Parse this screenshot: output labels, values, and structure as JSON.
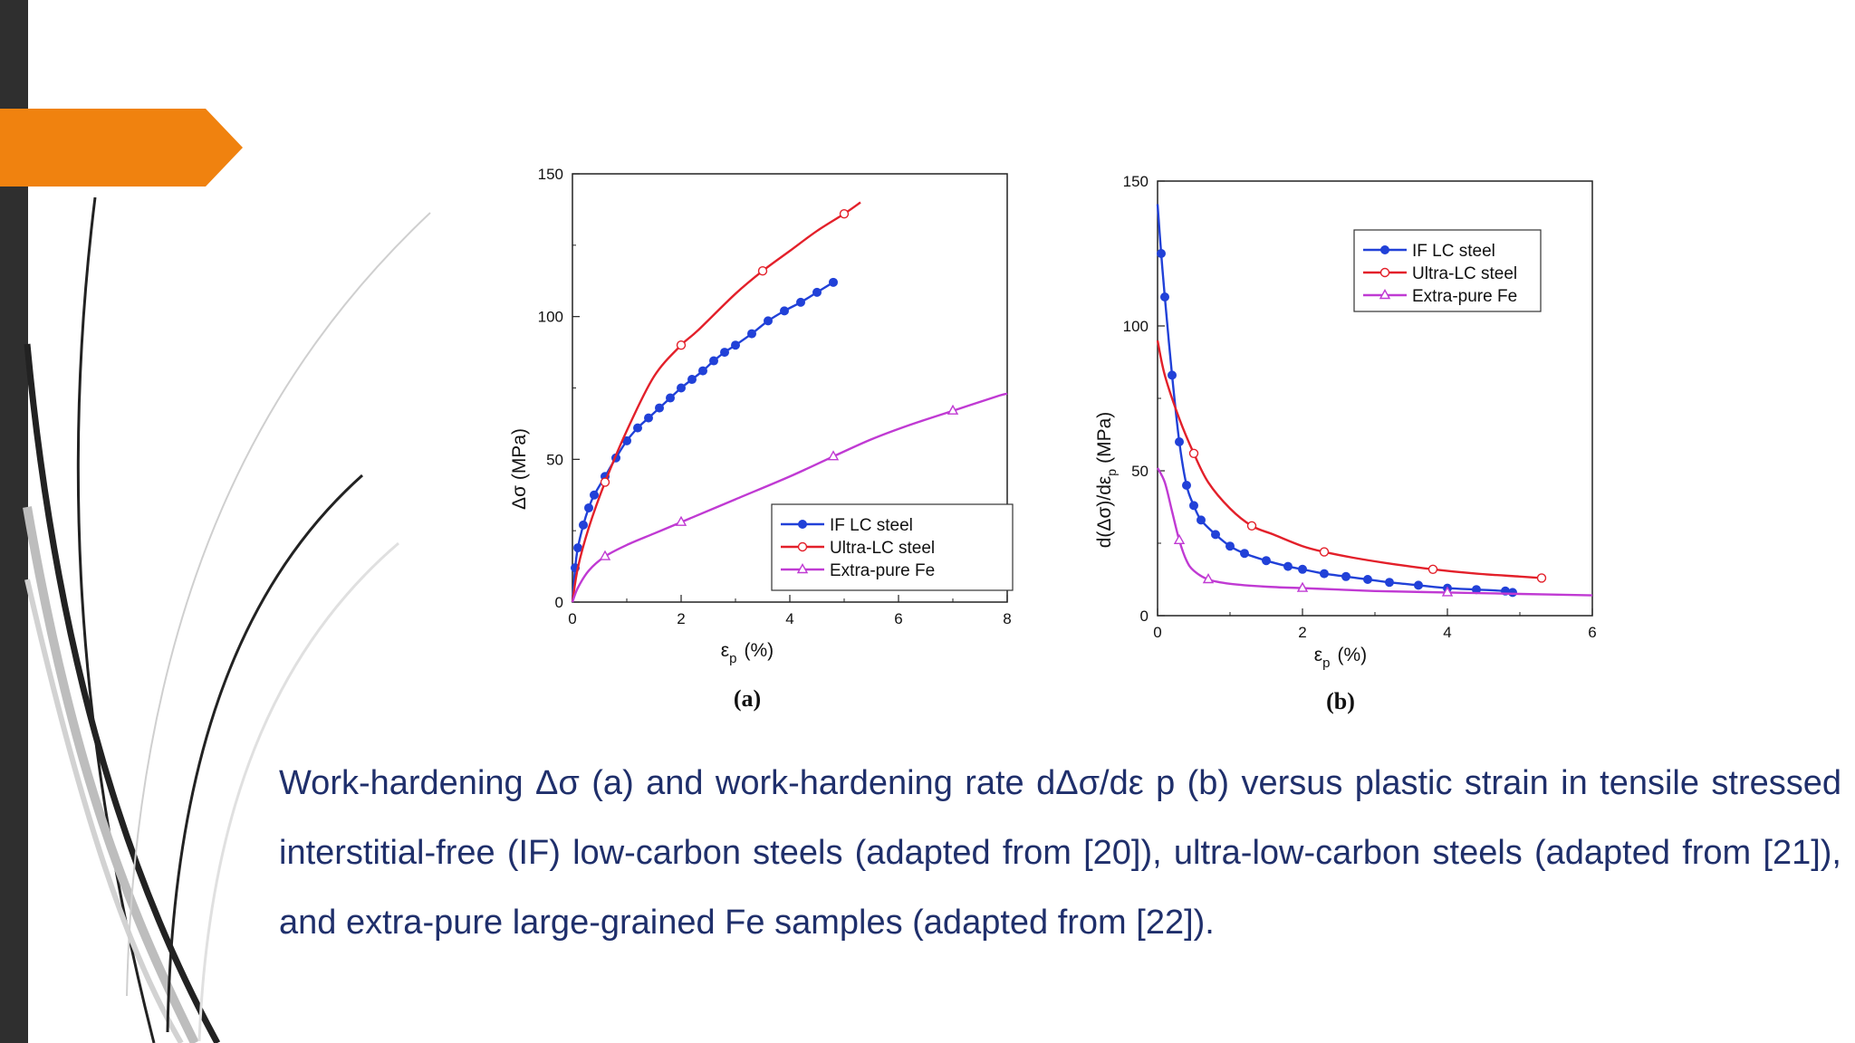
{
  "slide": {
    "accent_color": "#f0820f",
    "bar_color": "#2f2f2f",
    "caption_color": "#1f2f6b",
    "caption": "Work-hardening Δσ (a) and work-hardening rate dΔσ/dε p (b) versus plastic strain in tensile stressed interstitial-free (IF) low-carbon steels (adapted from [20]), ultra-low-carbon steels (adapted from [21]), and extra-pure large-grained Fe samples (adapted from [22])."
  },
  "chart_data": [
    {
      "type": "line",
      "panel_label": "(a)",
      "xlabel": "ε",
      "xlabel_sub": "p",
      "xlabel_unit": "(%)",
      "ylabel": "Δσ (MPa)",
      "xlim": [
        0,
        8
      ],
      "ylim": [
        0,
        150
      ],
      "xticks": [
        0,
        2,
        4,
        6,
        8
      ],
      "yticks": [
        0,
        50,
        100,
        150
      ],
      "grid": false,
      "legend_position": "lower-right",
      "series": [
        {
          "name": "IF LC steel",
          "color": "#2141d8",
          "marker": "filled-circle",
          "x": [
            0,
            0.05,
            0.1,
            0.2,
            0.3,
            0.4,
            0.6,
            0.8,
            1.0,
            1.2,
            1.4,
            1.6,
            1.8,
            2.0,
            2.2,
            2.4,
            2.6,
            2.8,
            3.0,
            3.3,
            3.6,
            3.9,
            4.2,
            4.5,
            4.8
          ],
          "y": [
            0,
            12,
            19,
            27,
            33,
            37.5,
            44,
            50.5,
            56.5,
            61,
            64.5,
            68,
            71.5,
            75,
            78,
            81,
            84.5,
            87.5,
            90,
            94,
            98.5,
            102,
            105,
            108.5,
            112
          ]
        },
        {
          "name": "Ultra-LC steel",
          "color": "#e3202a",
          "marker": "open-circle",
          "x": [
            0,
            0.1,
            0.3,
            0.6,
            1.0,
            1.5,
            2.0,
            2.3,
            3.0,
            3.5,
            4.0,
            4.5,
            5.0,
            5.3
          ],
          "y": [
            0,
            12,
            26,
            42,
            60,
            79,
            90,
            95,
            108,
            116,
            123,
            130,
            136,
            140
          ]
        },
        {
          "name": "Extra-pure Fe",
          "color": "#c03ad3",
          "marker": "open-triangle",
          "x": [
            0,
            0.1,
            0.3,
            0.6,
            1.0,
            1.5,
            2.0,
            3.0,
            4.0,
            4.8,
            5.5,
            6.2,
            7.0,
            7.8,
            8.0
          ],
          "y": [
            0,
            5,
            11,
            16,
            20,
            24,
            28,
            36,
            44,
            51,
            57,
            62,
            67,
            72,
            73
          ]
        }
      ]
    },
    {
      "type": "line",
      "panel_label": "(b)",
      "xlabel": "ε",
      "xlabel_sub": "p",
      "xlabel_unit": "(%)",
      "ylabel": "d(Δσ)/dε",
      "ylabel_sub": "p",
      "ylabel_unit": "(MPa)",
      "xlim": [
        0,
        6
      ],
      "ylim": [
        0,
        150
      ],
      "xticks": [
        0,
        2,
        4,
        6
      ],
      "yticks": [
        0,
        50,
        100,
        150
      ],
      "grid": false,
      "legend_position": "top-right",
      "series": [
        {
          "name": "IF LC steel",
          "color": "#2141d8",
          "marker": "filled-circle",
          "x": [
            0,
            0.05,
            0.1,
            0.2,
            0.3,
            0.4,
            0.5,
            0.6,
            0.8,
            1.0,
            1.2,
            1.5,
            1.8,
            2.0,
            2.3,
            2.6,
            2.9,
            3.2,
            3.6,
            4.0,
            4.4,
            4.8,
            4.9
          ],
          "y": [
            142,
            125,
            110,
            83,
            60,
            45,
            38,
            33,
            28,
            24,
            21.5,
            19,
            17,
            16,
            14.5,
            13.5,
            12.5,
            11.5,
            10.5,
            9.5,
            9,
            8.5,
            8
          ]
        },
        {
          "name": "Ultra-LC steel",
          "color": "#e3202a",
          "marker": "open-circle",
          "x": [
            0,
            0.1,
            0.3,
            0.5,
            0.7,
            1.0,
            1.3,
            1.6,
            2.0,
            2.3,
            2.7,
            3.2,
            3.8,
            4.4,
            5.0,
            5.3
          ],
          "y": [
            95,
            83,
            68,
            56,
            46,
            37,
            31,
            28,
            24,
            22,
            20,
            18,
            16,
            14.5,
            13.5,
            13
          ]
        },
        {
          "name": "Extra-pure Fe",
          "color": "#c03ad3",
          "marker": "open-triangle",
          "x": [
            0,
            0.1,
            0.2,
            0.3,
            0.4,
            0.5,
            0.7,
            1.0,
            1.5,
            2.0,
            2.5,
            3.0,
            4.0,
            5.0,
            6.0
          ],
          "y": [
            51,
            46,
            36,
            26,
            19,
            15.5,
            12.5,
            11,
            10,
            9.5,
            9,
            8.5,
            8,
            7.5,
            7
          ]
        }
      ]
    }
  ]
}
